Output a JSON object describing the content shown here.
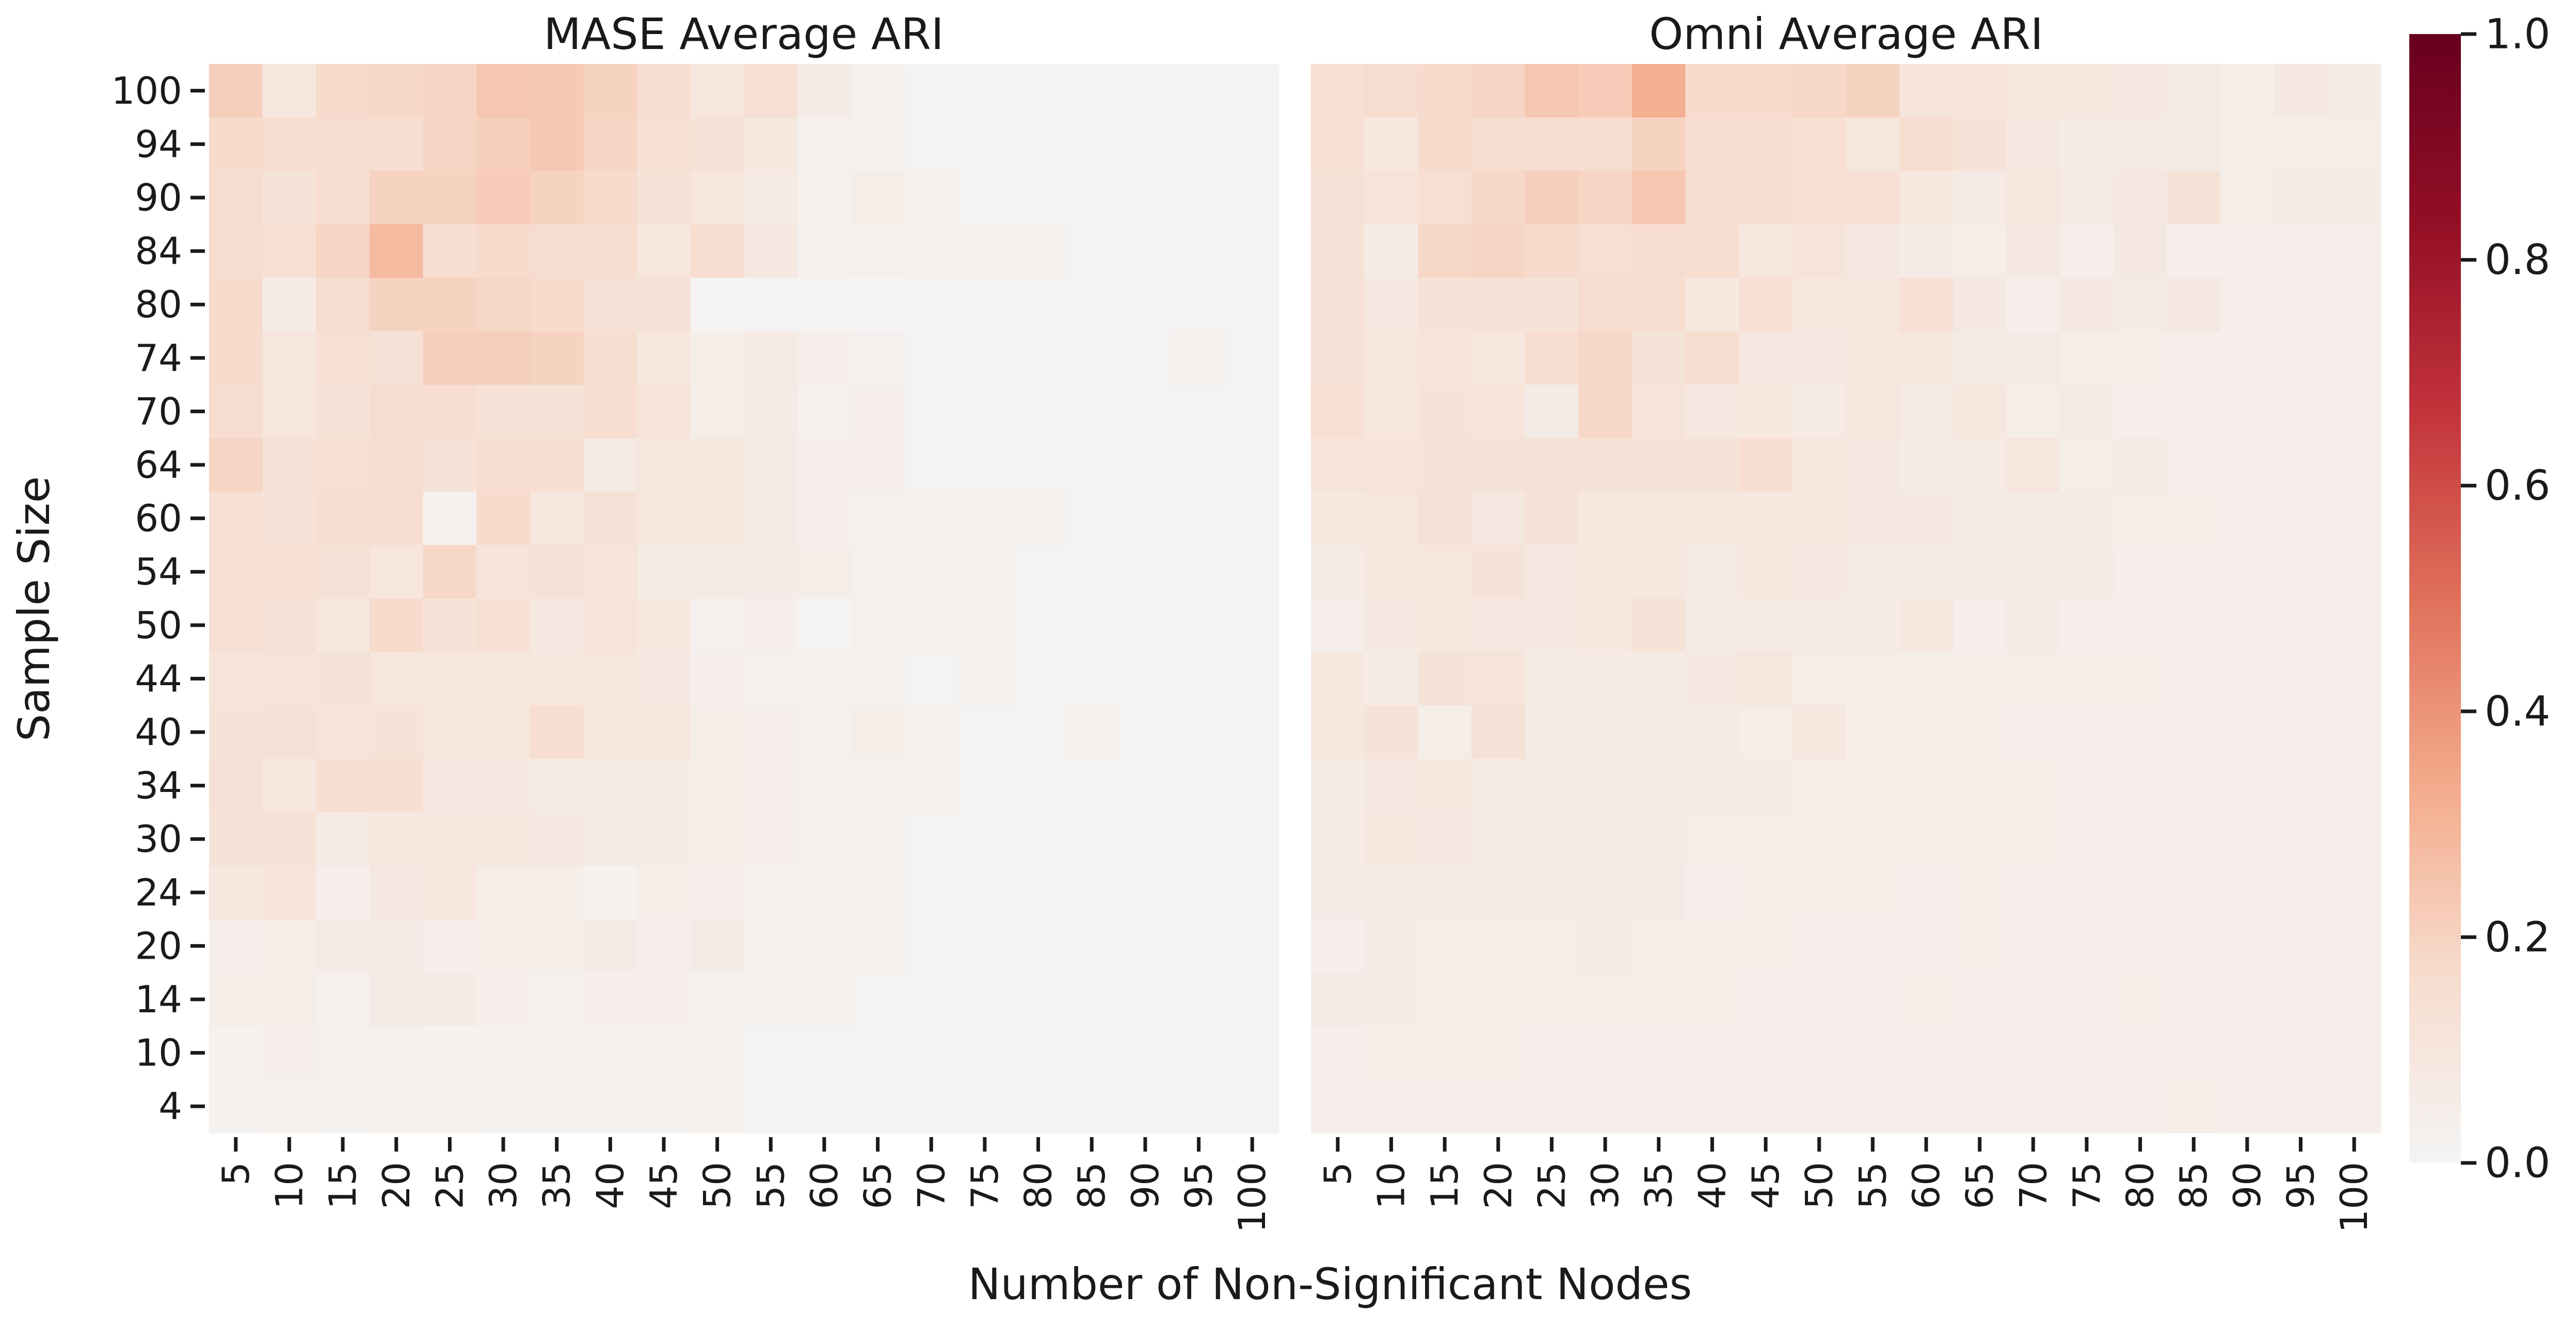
{
  "figure": {
    "xlabel": "Number of Non-Significant Nodes",
    "ylabel": "Sample Size"
  },
  "colorbar": {
    "ticks": [
      0.0,
      0.2,
      0.4,
      0.6,
      0.8,
      1.0
    ],
    "tick_labels": [
      "0.0",
      "0.2",
      "0.4",
      "0.6",
      "0.8",
      "1.0"
    ],
    "range": [
      0,
      1
    ],
    "colormap": "white-to-dark-red (Reds)",
    "color_stops": [
      "#f4f4f4",
      "#f7dccd",
      "#f3ab8c",
      "#e0705a",
      "#c2333b",
      "#930f25",
      "#67001f"
    ]
  },
  "chart_data": [
    {
      "type": "heatmap",
      "title": "MASE Average ARI",
      "xlabel": "Number of Non-Significant Nodes",
      "ylabel": "Sample Size",
      "x": [
        "5",
        "10",
        "15",
        "20",
        "25",
        "30",
        "35",
        "40",
        "45",
        "50",
        "55",
        "60",
        "65",
        "70",
        "75",
        "80",
        "85",
        "90",
        "95",
        "100"
      ],
      "y": [
        "100",
        "94",
        "90",
        "84",
        "80",
        "74",
        "70",
        "64",
        "60",
        "54",
        "50",
        "44",
        "40",
        "34",
        "30",
        "24",
        "20",
        "14",
        "10",
        "4"
      ],
      "value_range": [
        0,
        1
      ],
      "values": [
        [
          0.21,
          0.09,
          0.17,
          0.18,
          0.19,
          0.24,
          0.23,
          0.2,
          0.15,
          0.1,
          0.14,
          0.06,
          0.03,
          0.01,
          0.01,
          0.01,
          0.01,
          0.01,
          0.01,
          0.01
        ],
        [
          0.17,
          0.15,
          0.16,
          0.15,
          0.19,
          0.21,
          0.23,
          0.19,
          0.14,
          0.13,
          0.09,
          0.03,
          0.02,
          0.01,
          0.01,
          0.01,
          0.01,
          0.01,
          0.01,
          0.01
        ],
        [
          0.16,
          0.12,
          0.15,
          0.2,
          0.2,
          0.22,
          0.2,
          0.17,
          0.12,
          0.1,
          0.07,
          0.03,
          0.05,
          0.02,
          0.01,
          0.01,
          0.01,
          0.01,
          0.01,
          0.01
        ],
        [
          0.16,
          0.14,
          0.19,
          0.28,
          0.15,
          0.17,
          0.16,
          0.15,
          0.1,
          0.16,
          0.08,
          0.03,
          0.03,
          0.02,
          0.02,
          0.02,
          0.01,
          0.01,
          0.01,
          0.01
        ],
        [
          0.17,
          0.06,
          0.16,
          0.2,
          0.2,
          0.18,
          0.17,
          0.13,
          0.13,
          0.01,
          0.01,
          0.01,
          0.0,
          0.01,
          0.01,
          0.01,
          0.01,
          0.01,
          0.01,
          0.01
        ],
        [
          0.17,
          0.1,
          0.14,
          0.13,
          0.21,
          0.21,
          0.2,
          0.15,
          0.09,
          0.05,
          0.07,
          0.04,
          0.03,
          0.01,
          0.01,
          0.01,
          0.01,
          0.01,
          0.02,
          0.01
        ],
        [
          0.16,
          0.1,
          0.12,
          0.16,
          0.15,
          0.13,
          0.12,
          0.15,
          0.11,
          0.05,
          0.06,
          0.03,
          0.04,
          0.01,
          0.01,
          0.01,
          0.01,
          0.01,
          0.01,
          0.01
        ],
        [
          0.19,
          0.13,
          0.14,
          0.15,
          0.13,
          0.15,
          0.15,
          0.07,
          0.1,
          0.09,
          0.06,
          0.04,
          0.04,
          0.01,
          0.01,
          0.01,
          0.01,
          0.01,
          0.01,
          0.01
        ],
        [
          0.14,
          0.13,
          0.15,
          0.16,
          0.03,
          0.17,
          0.1,
          0.13,
          0.1,
          0.09,
          0.06,
          0.04,
          0.03,
          0.02,
          0.02,
          0.02,
          0.01,
          0.01,
          0.01,
          0.01
        ],
        [
          0.14,
          0.14,
          0.13,
          0.1,
          0.18,
          0.11,
          0.13,
          0.11,
          0.07,
          0.07,
          0.06,
          0.05,
          0.03,
          0.02,
          0.02,
          0.01,
          0.01,
          0.01,
          0.01,
          0.01
        ],
        [
          0.14,
          0.13,
          0.09,
          0.17,
          0.12,
          0.14,
          0.08,
          0.11,
          0.09,
          0.03,
          0.04,
          0.01,
          0.03,
          0.02,
          0.02,
          0.01,
          0.01,
          0.01,
          0.01,
          0.01
        ],
        [
          0.11,
          0.11,
          0.12,
          0.1,
          0.1,
          0.1,
          0.1,
          0.1,
          0.08,
          0.04,
          0.03,
          0.03,
          0.02,
          0.01,
          0.02,
          0.01,
          0.01,
          0.01,
          0.01,
          0.01
        ],
        [
          0.12,
          0.13,
          0.11,
          0.12,
          0.1,
          0.1,
          0.15,
          0.09,
          0.1,
          0.05,
          0.04,
          0.03,
          0.05,
          0.02,
          0.01,
          0.01,
          0.02,
          0.01,
          0.01,
          0.01
        ],
        [
          0.13,
          0.09,
          0.15,
          0.15,
          0.08,
          0.08,
          0.07,
          0.07,
          0.06,
          0.05,
          0.04,
          0.03,
          0.02,
          0.02,
          0.01,
          0.01,
          0.01,
          0.01,
          0.01,
          0.01
        ],
        [
          0.12,
          0.13,
          0.07,
          0.09,
          0.1,
          0.09,
          0.08,
          0.06,
          0.06,
          0.05,
          0.04,
          0.03,
          0.02,
          0.01,
          0.01,
          0.01,
          0.01,
          0.01,
          0.01,
          0.01
        ],
        [
          0.09,
          0.11,
          0.04,
          0.08,
          0.1,
          0.05,
          0.05,
          0.02,
          0.05,
          0.04,
          0.03,
          0.02,
          0.02,
          0.01,
          0.01,
          0.01,
          0.01,
          0.01,
          0.01,
          0.01
        ],
        [
          0.04,
          0.05,
          0.07,
          0.06,
          0.04,
          0.05,
          0.05,
          0.06,
          0.04,
          0.06,
          0.03,
          0.02,
          0.02,
          0.01,
          0.01,
          0.01,
          0.01,
          0.01,
          0.01,
          0.01
        ],
        [
          0.05,
          0.05,
          0.03,
          0.06,
          0.07,
          0.04,
          0.03,
          0.04,
          0.04,
          0.02,
          0.02,
          0.02,
          0.01,
          0.01,
          0.01,
          0.01,
          0.01,
          0.01,
          0.01,
          0.01
        ],
        [
          0.02,
          0.04,
          0.03,
          0.03,
          0.02,
          0.02,
          0.02,
          0.02,
          0.02,
          0.02,
          0.01,
          0.01,
          0.01,
          0.01,
          0.01,
          0.01,
          0.01,
          0.01,
          0.01,
          0.01
        ],
        [
          0.02,
          0.03,
          0.02,
          0.03,
          0.03,
          0.02,
          0.02,
          0.02,
          0.02,
          0.03,
          0.01,
          0.01,
          0.01,
          0.01,
          0.01,
          0.01,
          0.01,
          0.01,
          0.01,
          0.01
        ]
      ]
    },
    {
      "type": "heatmap",
      "title": "Omni Average ARI",
      "xlabel": "Number of Non-Significant Nodes",
      "ylabel": "Sample Size",
      "x": [
        "5",
        "10",
        "15",
        "20",
        "25",
        "30",
        "35",
        "40",
        "45",
        "50",
        "55",
        "60",
        "65",
        "70",
        "75",
        "80",
        "85",
        "90",
        "95",
        "100"
      ],
      "y": [
        "100",
        "94",
        "90",
        "84",
        "80",
        "74",
        "70",
        "64",
        "60",
        "54",
        "50",
        "44",
        "40",
        "34",
        "30",
        "24",
        "20",
        "14",
        "10",
        "4"
      ],
      "value_range": [
        0,
        1
      ],
      "values": [
        [
          0.14,
          0.16,
          0.17,
          0.19,
          0.24,
          0.22,
          0.32,
          0.17,
          0.17,
          0.18,
          0.2,
          0.11,
          0.11,
          0.1,
          0.09,
          0.08,
          0.06,
          0.05,
          0.08,
          0.06
        ],
        [
          0.14,
          0.09,
          0.17,
          0.16,
          0.16,
          0.16,
          0.2,
          0.15,
          0.15,
          0.14,
          0.1,
          0.16,
          0.12,
          0.08,
          0.07,
          0.07,
          0.06,
          0.05,
          0.05,
          0.05
        ],
        [
          0.13,
          0.11,
          0.14,
          0.18,
          0.21,
          0.19,
          0.24,
          0.15,
          0.15,
          0.14,
          0.14,
          0.09,
          0.07,
          0.1,
          0.07,
          0.08,
          0.12,
          0.05,
          0.06,
          0.06
        ],
        [
          0.12,
          0.07,
          0.18,
          0.19,
          0.17,
          0.14,
          0.16,
          0.15,
          0.1,
          0.11,
          0.08,
          0.06,
          0.05,
          0.08,
          0.04,
          0.08,
          0.04,
          0.04,
          0.04,
          0.04
        ],
        [
          0.13,
          0.08,
          0.12,
          0.12,
          0.12,
          0.16,
          0.15,
          0.09,
          0.14,
          0.09,
          0.1,
          0.14,
          0.08,
          0.04,
          0.08,
          0.06,
          0.08,
          0.04,
          0.04,
          0.04
        ],
        [
          0.13,
          0.1,
          0.11,
          0.1,
          0.15,
          0.18,
          0.12,
          0.15,
          0.08,
          0.08,
          0.09,
          0.1,
          0.06,
          0.06,
          0.05,
          0.05,
          0.04,
          0.04,
          0.04,
          0.04
        ],
        [
          0.14,
          0.1,
          0.12,
          0.11,
          0.06,
          0.18,
          0.11,
          0.08,
          0.09,
          0.07,
          0.1,
          0.07,
          0.09,
          0.05,
          0.06,
          0.04,
          0.04,
          0.04,
          0.04,
          0.04
        ],
        [
          0.11,
          0.11,
          0.12,
          0.12,
          0.13,
          0.12,
          0.12,
          0.12,
          0.15,
          0.1,
          0.08,
          0.06,
          0.07,
          0.1,
          0.05,
          0.07,
          0.04,
          0.04,
          0.04,
          0.04
        ],
        [
          0.09,
          0.1,
          0.13,
          0.08,
          0.13,
          0.09,
          0.09,
          0.09,
          0.09,
          0.09,
          0.08,
          0.08,
          0.06,
          0.06,
          0.06,
          0.05,
          0.05,
          0.04,
          0.04,
          0.04
        ],
        [
          0.07,
          0.09,
          0.1,
          0.12,
          0.08,
          0.09,
          0.09,
          0.07,
          0.09,
          0.08,
          0.07,
          0.07,
          0.07,
          0.06,
          0.07,
          0.04,
          0.04,
          0.04,
          0.04,
          0.04
        ],
        [
          0.04,
          0.08,
          0.09,
          0.08,
          0.08,
          0.09,
          0.12,
          0.06,
          0.07,
          0.06,
          0.06,
          0.09,
          0.04,
          0.06,
          0.04,
          0.04,
          0.04,
          0.04,
          0.04,
          0.04
        ],
        [
          0.09,
          0.06,
          0.12,
          0.11,
          0.07,
          0.07,
          0.07,
          0.08,
          0.1,
          0.05,
          0.05,
          0.05,
          0.05,
          0.05,
          0.05,
          0.05,
          0.04,
          0.04,
          0.04,
          0.04
        ],
        [
          0.09,
          0.12,
          0.05,
          0.13,
          0.07,
          0.07,
          0.07,
          0.06,
          0.05,
          0.09,
          0.05,
          0.05,
          0.05,
          0.04,
          0.04,
          0.04,
          0.04,
          0.04,
          0.04,
          0.04
        ],
        [
          0.07,
          0.08,
          0.09,
          0.06,
          0.07,
          0.06,
          0.07,
          0.07,
          0.06,
          0.05,
          0.05,
          0.05,
          0.05,
          0.05,
          0.04,
          0.04,
          0.04,
          0.04,
          0.04,
          0.04
        ],
        [
          0.07,
          0.09,
          0.08,
          0.07,
          0.07,
          0.07,
          0.06,
          0.05,
          0.05,
          0.05,
          0.05,
          0.05,
          0.05,
          0.05,
          0.04,
          0.04,
          0.04,
          0.04,
          0.04,
          0.04
        ],
        [
          0.06,
          0.07,
          0.06,
          0.06,
          0.07,
          0.06,
          0.06,
          0.04,
          0.05,
          0.05,
          0.05,
          0.04,
          0.05,
          0.04,
          0.04,
          0.04,
          0.04,
          0.04,
          0.04,
          0.04
        ],
        [
          0.04,
          0.06,
          0.05,
          0.05,
          0.05,
          0.07,
          0.05,
          0.05,
          0.05,
          0.04,
          0.04,
          0.04,
          0.05,
          0.04,
          0.04,
          0.04,
          0.04,
          0.04,
          0.04,
          0.04
        ],
        [
          0.06,
          0.06,
          0.05,
          0.05,
          0.05,
          0.05,
          0.05,
          0.05,
          0.04,
          0.04,
          0.04,
          0.05,
          0.04,
          0.04,
          0.04,
          0.05,
          0.04,
          0.04,
          0.04,
          0.04
        ],
        [
          0.04,
          0.05,
          0.05,
          0.05,
          0.04,
          0.04,
          0.04,
          0.04,
          0.04,
          0.04,
          0.04,
          0.04,
          0.04,
          0.04,
          0.04,
          0.04,
          0.04,
          0.04,
          0.04,
          0.04
        ],
        [
          0.04,
          0.04,
          0.04,
          0.04,
          0.04,
          0.04,
          0.04,
          0.04,
          0.04,
          0.04,
          0.04,
          0.04,
          0.04,
          0.04,
          0.04,
          0.04,
          0.05,
          0.04,
          0.04,
          0.04
        ]
      ]
    }
  ]
}
